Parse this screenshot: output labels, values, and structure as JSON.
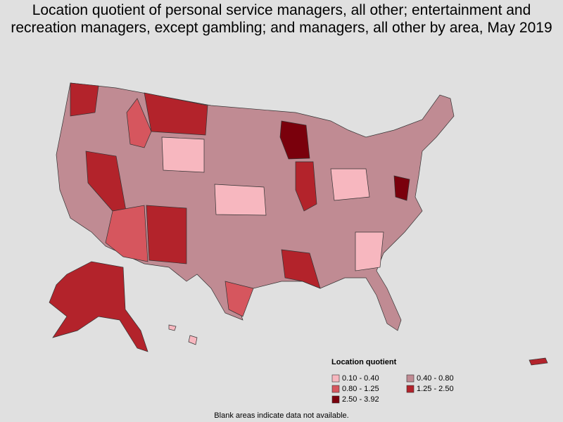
{
  "title": "Location quotient of personal service managers, all other; entertainment and recreation managers, except gambling; and managers, all other by area, May 2019",
  "legend": {
    "title": "Location quotient",
    "items": [
      {
        "label": "0.10 - 0.40",
        "color": "#f7b7bf"
      },
      {
        "label": "0.40 - 0.80",
        "color": "#c08b93"
      },
      {
        "label": "0.80 - 1.25",
        "color": "#d6565e"
      },
      {
        "label": "1.25 - 2.50",
        "color": "#b3232b"
      },
      {
        "label": "2.50 - 3.92",
        "color": "#7a000c"
      }
    ]
  },
  "note": "Blank areas indicate data not available."
}
